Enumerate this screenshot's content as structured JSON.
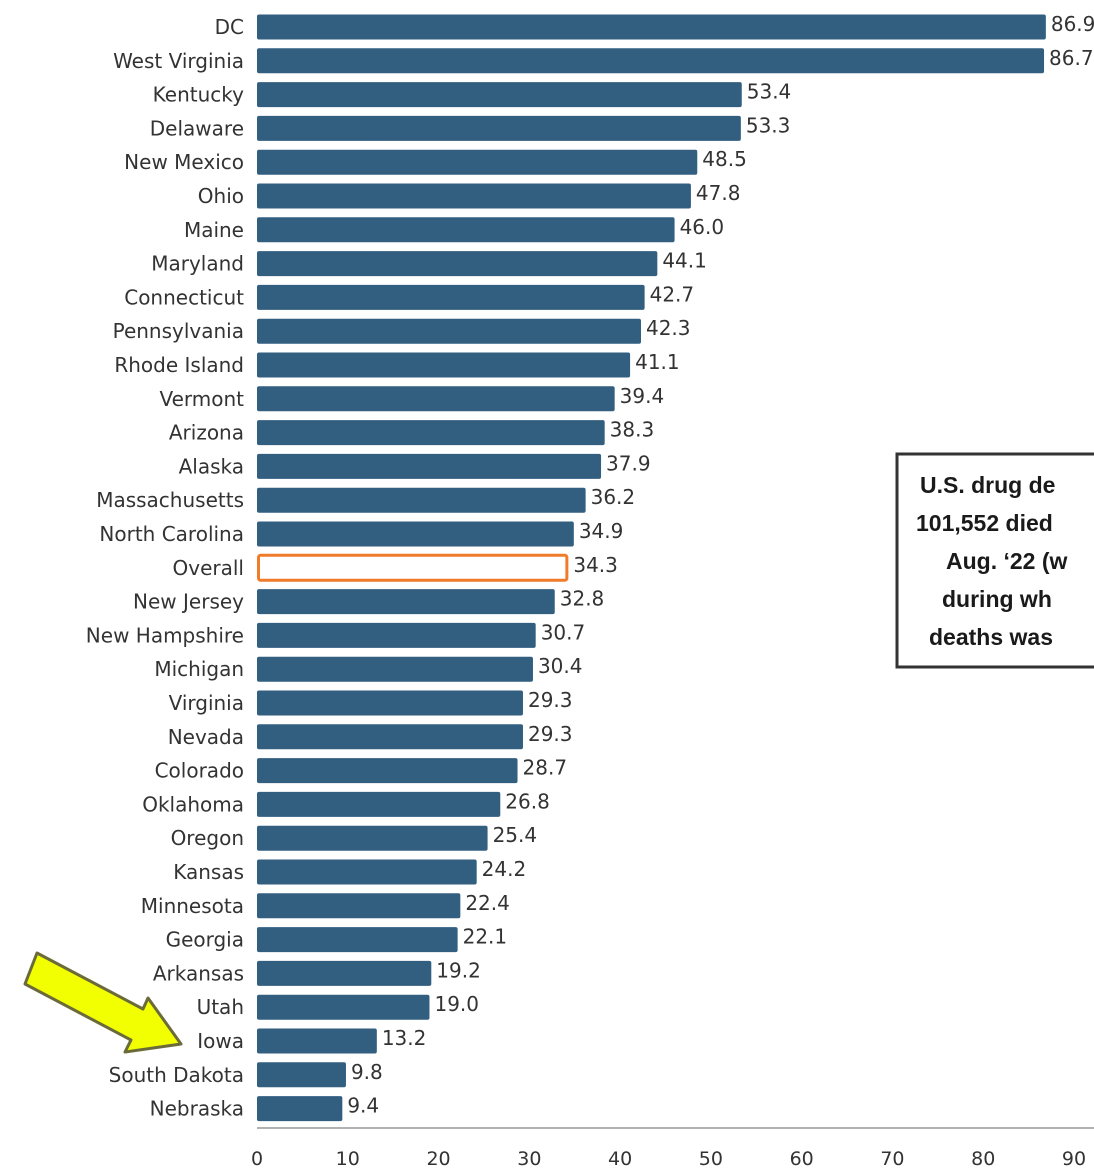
{
  "chart_data": {
    "type": "bar",
    "orientation": "horizontal",
    "categories": [
      "DC",
      "West Virginia",
      "Kentucky",
      "Delaware",
      "New Mexico",
      "Ohio",
      "Maine",
      "Maryland",
      "Connecticut",
      "Pennsylvania",
      "Rhode Island",
      "Vermont",
      "Arizona",
      "Alaska",
      "Massachusetts",
      "North Carolina",
      "Overall",
      "New Jersey",
      "New Hampshire",
      "Michigan",
      "Virginia",
      "Nevada",
      "Colorado",
      "Oklahoma",
      "Oregon",
      "Kansas",
      "Minnesota",
      "Georgia",
      "Arkansas",
      "Utah",
      "Iowa",
      "South Dakota",
      "Nebraska"
    ],
    "values": [
      86.9,
      86.7,
      53.4,
      53.3,
      48.5,
      47.8,
      46.0,
      44.1,
      42.7,
      42.3,
      41.1,
      39.4,
      38.3,
      37.9,
      36.2,
      34.9,
      34.3,
      32.8,
      30.7,
      30.4,
      29.3,
      29.3,
      28.7,
      26.8,
      25.4,
      24.2,
      22.4,
      22.1,
      19.2,
      19.0,
      13.2,
      9.8,
      9.4
    ],
    "value_labels": [
      "86.9",
      "86.7",
      "53.4",
      "53.3",
      "48.5",
      "47.8",
      "46.0",
      "44.1",
      "42.7",
      "42.3",
      "41.1",
      "39.4",
      "38.3",
      "37.9",
      "36.2",
      "34.9",
      "34.3",
      "32.8",
      "30.7",
      "30.4",
      "29.3",
      "29.3",
      "28.7",
      "26.8",
      "25.4",
      "24.2",
      "22.4",
      "22.1",
      "19.2",
      "19.0",
      "13.2",
      "9.8",
      "9.4"
    ],
    "x_ticks": [
      "0",
      "10",
      "20",
      "30",
      "40",
      "50",
      "60",
      "70",
      "80",
      "90"
    ],
    "xlim": [
      0,
      90
    ],
    "highlighted_category": "Overall",
    "arrow_pointing_to": "Iowa",
    "title": "",
    "xlabel": "",
    "ylabel": "",
    "grid": false,
    "colors": {
      "bar": "#325e80",
      "overall_outline": "#f07c2a",
      "overall_fill": "#ffffff",
      "arrow_fill": "#f2ff00",
      "arrow_stroke": "#6b6b3a",
      "box_border": "#333333"
    }
  },
  "annotation": {
    "lines": [
      "U.S. drug de",
      "101,552 died",
      "Aug. ‘22 (w",
      "during wh",
      "deaths was"
    ]
  }
}
